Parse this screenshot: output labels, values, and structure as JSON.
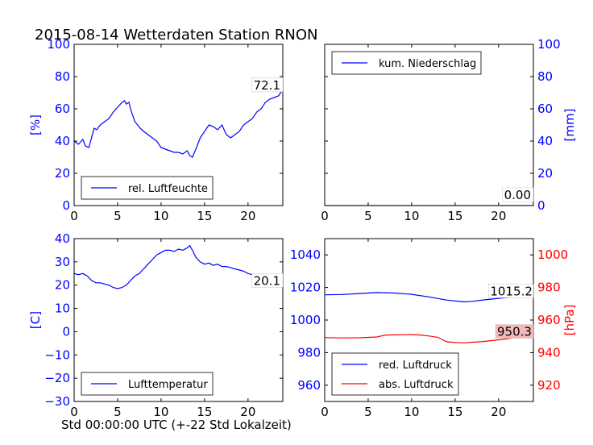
{
  "figure": {
    "title": "2015-08-14 Wetterdaten Station RNON",
    "xlabel": "Std 00:00:00 UTC (+-22 Std Lokalzeit)"
  },
  "colors": {
    "blue": "#0000ff",
    "red": "#ff0000",
    "black": "#000000",
    "label_red_bg": "#f4b8b8"
  },
  "chart_data": [
    {
      "id": "humidity",
      "type": "line",
      "ylabel": "[%]",
      "xlim": [
        0,
        24
      ],
      "ylim": [
        0,
        100
      ],
      "xticks": [
        0,
        5,
        10,
        15,
        20
      ],
      "yticks": [
        0,
        20,
        40,
        60,
        80,
        100
      ],
      "legend": "bottom-left",
      "series": [
        {
          "name": "rel. Luftfeuchte",
          "color": "#0000ff",
          "x": [
            0,
            0.5,
            1,
            1.3,
            1.7,
            2,
            2.3,
            2.6,
            3,
            3.5,
            4,
            4.5,
            5,
            5.5,
            5.8,
            6,
            6.3,
            6.6,
            7,
            7.3,
            7.6,
            8,
            8.5,
            9,
            9.5,
            10,
            10.5,
            11,
            11.5,
            12,
            12.5,
            13,
            13.3,
            13.6,
            14,
            14.5,
            15,
            15.5,
            16,
            16.5,
            17,
            17.5,
            18,
            18.5,
            19,
            19.5,
            20,
            20.5,
            21,
            21.5,
            22,
            22.5,
            23,
            23.5,
            24
          ],
          "y": [
            40,
            38,
            41,
            37,
            36,
            42,
            48,
            47,
            50,
            52,
            54,
            58,
            61,
            64,
            65,
            63,
            64,
            58,
            52,
            50,
            48,
            46,
            44,
            42,
            40,
            36,
            35,
            34,
            33,
            33,
            32,
            34,
            31,
            30,
            35,
            42,
            46,
            50,
            49,
            47,
            50,
            44,
            42,
            44,
            46,
            50,
            52,
            54,
            58,
            60,
            64,
            66,
            67,
            68,
            72.1
          ]
        }
      ],
      "annotations": [
        {
          "text": "72.1",
          "x": 23.5,
          "y": 72.1
        }
      ]
    },
    {
      "id": "precipitation",
      "type": "line",
      "ylabel": "[mm]",
      "xlim": [
        0,
        24
      ],
      "ylim": [
        0,
        100
      ],
      "xticks": [
        0,
        5,
        10,
        15,
        20
      ],
      "yticks": [
        0,
        20,
        40,
        60,
        80,
        100
      ],
      "legend": "top-left",
      "series": [
        {
          "name": "kum. Niederschlag",
          "color": "#0000ff",
          "x": [
            0,
            24
          ],
          "y": [
            0,
            0
          ]
        }
      ],
      "annotations": [
        {
          "text": "0.00",
          "x": 23.5,
          "y": 0
        }
      ]
    },
    {
      "id": "temperature",
      "type": "line",
      "ylabel": "[C]",
      "xlim": [
        0,
        24
      ],
      "ylim": [
        -30,
        40
      ],
      "xticks": [
        0,
        5,
        10,
        15,
        20
      ],
      "yticks": [
        -30,
        -20,
        -10,
        0,
        10,
        20,
        30,
        40
      ],
      "legend": "bottom-left",
      "series": [
        {
          "name": "Lufttemperatur",
          "color": "#0000ff",
          "x": [
            0,
            0.5,
            1,
            1.5,
            2,
            2.5,
            3,
            3.5,
            4,
            4.5,
            5,
            5.5,
            6,
            6.5,
            7,
            7.5,
            8,
            8.5,
            9,
            9.5,
            10,
            10.5,
            11,
            11.5,
            12,
            12.5,
            13,
            13.3,
            13.6,
            14,
            14.5,
            15,
            15.5,
            16,
            16.5,
            17,
            17.5,
            18,
            18.5,
            19,
            19.5,
            20,
            20.5,
            21,
            21.5,
            22,
            22.5,
            23,
            23.5,
            24
          ],
          "y": [
            25,
            24.5,
            25,
            24,
            22,
            21,
            21,
            20.5,
            20,
            19,
            18.5,
            19,
            20,
            22,
            24,
            25,
            27,
            29,
            31,
            33,
            34,
            35,
            35,
            34.5,
            35.5,
            35,
            36,
            37,
            35,
            32,
            30,
            29,
            29.5,
            28.5,
            29,
            28,
            28,
            27.5,
            27,
            26.5,
            26,
            25,
            24.5,
            23.5,
            22.5,
            22,
            21.5,
            21,
            20.5,
            20.1
          ]
        }
      ],
      "annotations": [
        {
          "text": "20.1",
          "x": 23.5,
          "y": 20.1
        }
      ]
    },
    {
      "id": "pressure",
      "type": "line",
      "ylabel_right": "[hPa]",
      "xlim": [
        0,
        24
      ],
      "ylim": [
        950,
        1050
      ],
      "ylim_right": [
        910,
        1010
      ],
      "xticks": [
        0,
        5,
        10,
        15,
        20
      ],
      "yticks": [
        960,
        980,
        1000,
        1020,
        1040
      ],
      "yticks_right": [
        920,
        940,
        960,
        980,
        1000
      ],
      "legend": "bottom-left",
      "series": [
        {
          "name": "red. Luftdruck",
          "color": "#0000ff",
          "axis": "left",
          "x": [
            0,
            2,
            4,
            6,
            8,
            10,
            12,
            14,
            16,
            17,
            18,
            20,
            22,
            24
          ],
          "y": [
            1015.5,
            1015.7,
            1016.3,
            1016.9,
            1016.6,
            1015.8,
            1014.2,
            1012.3,
            1011.2,
            1011.5,
            1012.2,
            1013.3,
            1014.4,
            1015.2
          ]
        },
        {
          "name": "abs. Luftdruck",
          "color": "#ff0000",
          "axis": "right",
          "x": [
            0,
            2,
            4,
            6,
            7,
            8,
            9,
            10,
            11,
            12,
            13,
            14,
            15,
            16,
            17,
            18,
            20,
            22,
            24
          ],
          "y": [
            949.2,
            949.0,
            949.1,
            949.6,
            950.8,
            950.9,
            951.0,
            951.1,
            950.8,
            950.2,
            949.4,
            946.7,
            946.2,
            946.0,
            946.4,
            946.7,
            947.8,
            949.3,
            950.3
          ]
        }
      ],
      "annotations": [
        {
          "text": "1015.2",
          "x": 23.5,
          "y": 1015.2,
          "axis": "left"
        },
        {
          "text": "950.3",
          "x": 23.5,
          "y": 950.3,
          "axis": "right"
        }
      ]
    }
  ]
}
